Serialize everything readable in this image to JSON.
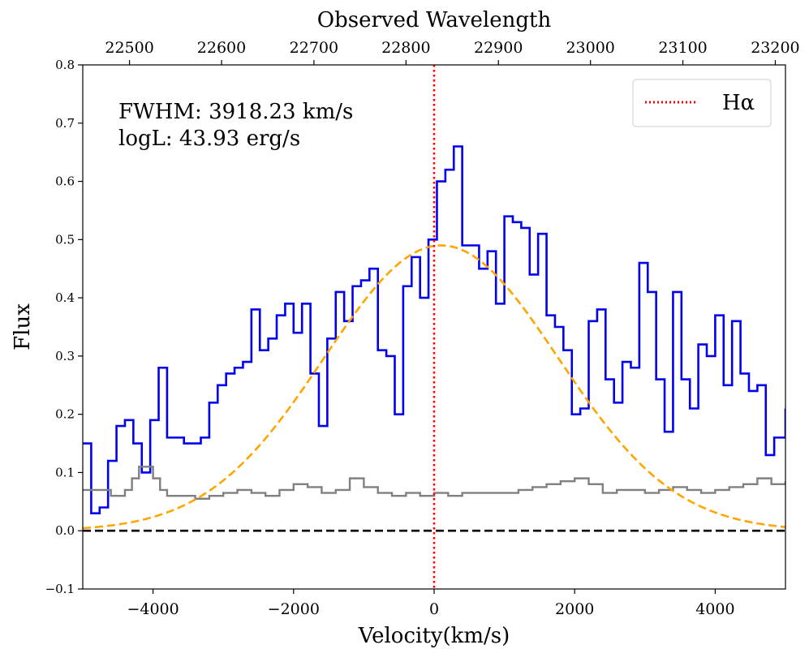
{
  "chart_data": {
    "type": "line",
    "ylabel": "Flux",
    "xlabel": "Velocity(km/s)",
    "top_axis_label": "Observed Wavelength",
    "xlim": [
      -5000,
      5000
    ],
    "ylim": [
      -0.1,
      0.8
    ],
    "x_ticks": [
      -4000,
      -2000,
      0,
      2000,
      4000
    ],
    "x_tick_labels": [
      "−4000",
      "−2000",
      "0",
      "2000",
      "4000"
    ],
    "y_ticks": [
      -0.1,
      0.0,
      0.1,
      0.2,
      0.3,
      0.4,
      0.5,
      0.6,
      0.7,
      0.8
    ],
    "y_tick_labels": [
      "−0.1",
      "0.0",
      "0.1",
      "0.2",
      "0.3",
      "0.4",
      "0.5",
      "0.6",
      "0.7",
      "0.8"
    ],
    "top_ticks": {
      "values": [
        22500,
        22600,
        22700,
        22800,
        22900,
        23000,
        23100,
        23200
      ],
      "labels": [
        "22500",
        "22600",
        "22700",
        "22800",
        "22900",
        "23000",
        "23100",
        "23200"
      ],
      "velocity_positions": [
        -4335,
        -3025,
        -1710,
        -400,
        915,
        2225,
        3540,
        4855
      ]
    },
    "annotations": {
      "fwhm": "FWHM: 3918.23 km/s",
      "logl": "logL: 43.93 erg/s"
    },
    "legend": {
      "label": "Hα",
      "color": "#ff0000",
      "location": "top-right"
    },
    "series": [
      {
        "name": "flux",
        "color": "#0000ee",
        "style": "step",
        "x": [
          -5000,
          -4880,
          -4760,
          -4640,
          -4520,
          -4400,
          -4280,
          -4160,
          -4040,
          -3920,
          -3800,
          -3680,
          -3560,
          -3440,
          -3320,
          -3200,
          -3080,
          -2960,
          -2840,
          -2720,
          -2600,
          -2480,
          -2360,
          -2240,
          -2120,
          -2000,
          -1880,
          -1760,
          -1640,
          -1520,
          -1400,
          -1280,
          -1160,
          -1040,
          -920,
          -800,
          -680,
          -560,
          -440,
          -320,
          -200,
          -80,
          40,
          160,
          280,
          400,
          520,
          640,
          760,
          880,
          1000,
          1120,
          1240,
          1360,
          1480,
          1600,
          1720,
          1840,
          1960,
          2080,
          2200,
          2320,
          2440,
          2560,
          2680,
          2800,
          2920,
          3040,
          3160,
          3280,
          3400,
          3520,
          3640,
          3760,
          3880,
          4000,
          4120,
          4240,
          4360,
          4480,
          4600,
          4720,
          4840,
          5000
        ],
        "y": [
          0.15,
          0.03,
          0.04,
          0.12,
          0.18,
          0.19,
          0.15,
          0.1,
          0.19,
          0.28,
          0.16,
          0.16,
          0.15,
          0.15,
          0.16,
          0.22,
          0.25,
          0.27,
          0.28,
          0.29,
          0.38,
          0.31,
          0.33,
          0.37,
          0.39,
          0.34,
          0.39,
          0.27,
          0.18,
          0.33,
          0.41,
          0.36,
          0.42,
          0.43,
          0.45,
          0.31,
          0.3,
          0.2,
          0.42,
          0.47,
          0.4,
          0.5,
          0.6,
          0.62,
          0.66,
          0.49,
          0.49,
          0.45,
          0.48,
          0.39,
          0.54,
          0.53,
          0.52,
          0.44,
          0.51,
          0.37,
          0.35,
          0.31,
          0.2,
          0.21,
          0.36,
          0.38,
          0.26,
          0.22,
          0.29,
          0.28,
          0.46,
          0.41,
          0.26,
          0.17,
          0.41,
          0.26,
          0.21,
          0.32,
          0.3,
          0.37,
          0.25,
          0.36,
          0.27,
          0.24,
          0.25,
          0.13,
          0.16,
          0.21
        ]
      },
      {
        "name": "error",
        "color": "#808080",
        "style": "step",
        "x": [
          -5000,
          -4800,
          -4600,
          -4500,
          -4400,
          -4300,
          -4200,
          -4100,
          -4000,
          -3900,
          -3800,
          -3600,
          -3400,
          -3200,
          -3000,
          -2800,
          -2600,
          -2400,
          -2200,
          -2000,
          -1800,
          -1600,
          -1400,
          -1200,
          -1000,
          -800,
          -600,
          -400,
          -200,
          0,
          200,
          400,
          800,
          1200,
          1400,
          1600,
          1800,
          2000,
          2200,
          2400,
          2600,
          2800,
          3000,
          3200,
          3400,
          3600,
          3800,
          4000,
          4200,
          4400,
          4600,
          4800,
          5000
        ],
        "y": [
          0.07,
          0.07,
          0.06,
          0.06,
          0.07,
          0.09,
          0.11,
          0.11,
          0.09,
          0.07,
          0.06,
          0.06,
          0.055,
          0.06,
          0.065,
          0.07,
          0.065,
          0.06,
          0.07,
          0.08,
          0.075,
          0.065,
          0.07,
          0.09,
          0.075,
          0.065,
          0.06,
          0.065,
          0.06,
          0.065,
          0.06,
          0.065,
          0.065,
          0.07,
          0.075,
          0.08,
          0.085,
          0.09,
          0.08,
          0.065,
          0.07,
          0.07,
          0.065,
          0.07,
          0.075,
          0.07,
          0.065,
          0.07,
          0.075,
          0.08,
          0.09,
          0.08,
          0.085
        ]
      },
      {
        "name": "gaussian_fit",
        "color": "#ffa500",
        "style": "dashed",
        "center": 100,
        "fwhm": 3918.23,
        "amplitude": 0.49,
        "offset": 0.0
      }
    ],
    "reference_lines": [
      {
        "type": "vertical",
        "x": 0,
        "color": "#ff0000",
        "style": "dotted",
        "label": "Hα"
      },
      {
        "type": "horizontal",
        "y": 0.0,
        "color": "#000000",
        "style": "dashed"
      }
    ]
  }
}
